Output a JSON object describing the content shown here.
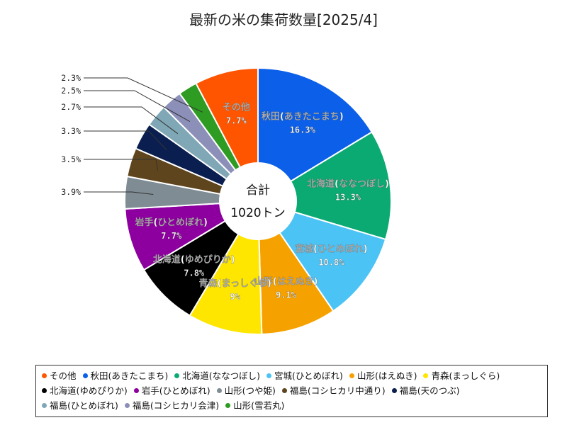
{
  "chart_data": {
    "type": "pie",
    "title": "最新の米の集荷数量[2025/4]",
    "center_label_top": "合計",
    "center_label_bottom": "1020トン",
    "categories": [
      "秋田(あきたこまち)",
      "北海道(ななつぼし)",
      "宮城(ひとめぼれ)",
      "山形(はえぬき)",
      "青森(まっしぐら)",
      "北海道(ゆめぴりか)",
      "岩手(ひとめぼれ)",
      "山形(つや姫)",
      "福島(コシヒカリ中通り)",
      "福島(天のつぶ)",
      "福島(ひとめぼれ)",
      "福島(コシヒカリ会津)",
      "山形(雪若丸)",
      "その他"
    ],
    "values": [
      16.3,
      13.3,
      10.8,
      9.1,
      9,
      7.8,
      7.7,
      3.9,
      3.5,
      3.3,
      2.7,
      2.5,
      2.3,
      7.7
    ],
    "value_labels": [
      "16.3%",
      "13.3%",
      "10.8%",
      "9.1%",
      "9%",
      "7.8%",
      "7.7%",
      "3.9%",
      "3.5%",
      "3.3%",
      "2.7%",
      "2.5%",
      "2.3%",
      "7.7%"
    ],
    "colors": [
      "#0b5fe8",
      "#0aaa72",
      "#4cc3f5",
      "#f5a200",
      "#ffe600",
      "#000000",
      "#8d009f",
      "#7f8c94",
      "#5e451d",
      "#0a1f4f",
      "#7fa7b5",
      "#8c8fb8",
      "#2e9b22",
      "#ff5500"
    ],
    "legend_order": [
      "その他",
      "秋田(あきたこまち)",
      "北海道(ななつぼし)",
      "宮城(ひとめぼれ)",
      "山形(はえぬき)",
      "青森(まっしぐら)",
      "北海道(ゆめぴりか)",
      "岩手(ひとめぼれ)",
      "山形(つや姫)",
      "福島(コシヒカリ中通り)",
      "福島(天のつぶ)",
      "福島(ひとめぼれ)",
      "福島(コシヒカリ会津)",
      "山形(雪若丸)"
    ],
    "legend_placement": "bottom"
  }
}
